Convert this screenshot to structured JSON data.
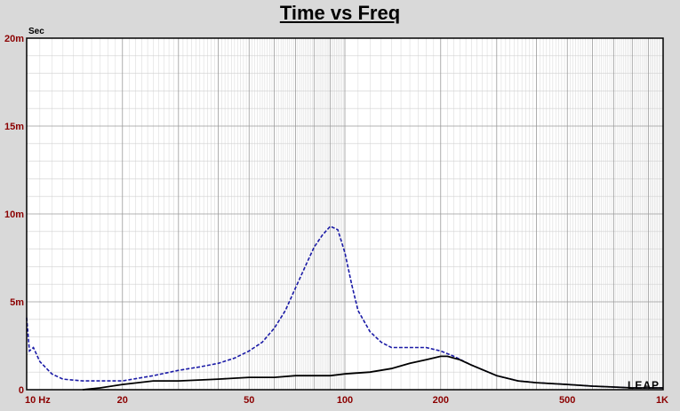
{
  "chart_data": {
    "type": "line",
    "title": "Time vs Freq",
    "y_unit_label": "Sec",
    "x_scale": "log",
    "xlim": [
      10,
      1000
    ],
    "ylim": [
      0,
      0.02
    ],
    "grid": true,
    "x_tick_labels": [
      {
        "value": 10,
        "label": "10 Hz"
      },
      {
        "value": 20,
        "label": "20"
      },
      {
        "value": 50,
        "label": "50"
      },
      {
        "value": 100,
        "label": "100"
      },
      {
        "value": 200,
        "label": "200"
      },
      {
        "value": 500,
        "label": "500"
      },
      {
        "value": 1000,
        "label": "1K"
      }
    ],
    "y_tick_labels": [
      {
        "value": 0.02,
        "label": "20m"
      },
      {
        "value": 0.015,
        "label": "15m"
      },
      {
        "value": 0.01,
        "label": "10m"
      },
      {
        "value": 0.005,
        "label": "5m"
      },
      {
        "value": 0,
        "label": "0"
      }
    ],
    "series": [
      {
        "color": "#1a1aa6",
        "style": "dashed",
        "points": [
          [
            10.0,
            0.0041
          ],
          [
            10.2,
            0.0022
          ],
          [
            10.5,
            0.0024
          ],
          [
            11.0,
            0.0016
          ],
          [
            12.0,
            0.0009
          ],
          [
            13.0,
            0.0006
          ],
          [
            15.0,
            0.0005
          ],
          [
            18.0,
            0.0005
          ],
          [
            20.0,
            0.0005
          ],
          [
            25.0,
            0.0008
          ],
          [
            30.0,
            0.0011
          ],
          [
            35.0,
            0.0013
          ],
          [
            40.0,
            0.0015
          ],
          [
            45.0,
            0.0018
          ],
          [
            50.0,
            0.0022
          ],
          [
            55.0,
            0.0027
          ],
          [
            60.0,
            0.0035
          ],
          [
            65.0,
            0.0045
          ],
          [
            70.0,
            0.0058
          ],
          [
            75.0,
            0.007
          ],
          [
            80.0,
            0.0081
          ],
          [
            85.0,
            0.0088
          ],
          [
            90.0,
            0.0093
          ],
          [
            95.0,
            0.0091
          ],
          [
            100.0,
            0.0078
          ],
          [
            105.0,
            0.006
          ],
          [
            110.0,
            0.0045
          ],
          [
            120.0,
            0.0033
          ],
          [
            130.0,
            0.0027
          ],
          [
            140.0,
            0.0024
          ],
          [
            160.0,
            0.0024
          ],
          [
            180.0,
            0.0024
          ],
          [
            200.0,
            0.0022
          ],
          [
            220.0,
            0.0019
          ],
          [
            250.0,
            0.0014
          ],
          [
            300.0,
            0.0008
          ],
          [
            350.0,
            0.0005
          ],
          [
            400.0,
            0.0004
          ],
          [
            500.0,
            0.0003
          ],
          [
            600.0,
            0.0002
          ],
          [
            700.0,
            0.00015
          ],
          [
            800.0,
            0.0001
          ],
          [
            900.0,
            0.0001
          ],
          [
            1000.0,
            0.0001
          ]
        ]
      },
      {
        "color": "#000000",
        "style": "solid",
        "points": [
          [
            15.0,
            0.0
          ],
          [
            17.0,
            0.0001
          ],
          [
            20.0,
            0.0003
          ],
          [
            25.0,
            0.0005
          ],
          [
            30.0,
            0.0005
          ],
          [
            40.0,
            0.0006
          ],
          [
            50.0,
            0.0007
          ],
          [
            60.0,
            0.0007
          ],
          [
            70.0,
            0.0008
          ],
          [
            80.0,
            0.0008
          ],
          [
            90.0,
            0.0008
          ],
          [
            100.0,
            0.0009
          ],
          [
            120.0,
            0.001
          ],
          [
            140.0,
            0.0012
          ],
          [
            160.0,
            0.0015
          ],
          [
            180.0,
            0.0017
          ],
          [
            200.0,
            0.0019
          ],
          [
            210.0,
            0.0019
          ],
          [
            230.0,
            0.0017
          ],
          [
            250.0,
            0.0014
          ],
          [
            300.0,
            0.0008
          ],
          [
            350.0,
            0.0005
          ],
          [
            400.0,
            0.0004
          ],
          [
            500.0,
            0.0003
          ],
          [
            600.0,
            0.0002
          ],
          [
            700.0,
            0.00015
          ],
          [
            800.0,
            0.0001
          ],
          [
            1000.0,
            0.0001
          ]
        ]
      }
    ]
  },
  "logo_text": "LEAP"
}
